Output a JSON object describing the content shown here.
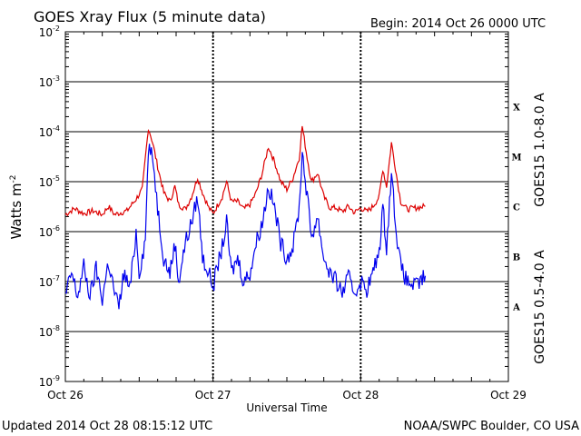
{
  "chart_data": {
    "type": "line",
    "title": "GOES Xray Flux (5 minute data)",
    "begin_label": "Begin:  2014 Oct 26 0000 UTC",
    "xlabel": "Universal Time",
    "ylabel_base": "Watts m",
    "ylabel_exp": "-2",
    "footer_left": "Updated 2014 Oct 28 08:15:12 UTC",
    "footer_right": "NOAA/SWPC Boulder, CO USA",
    "x_ticks": [
      "Oct 26",
      "Oct 27",
      "Oct 28",
      "Oct 29"
    ],
    "x_range_hours": [
      0,
      72
    ],
    "y_scale": "log",
    "ylim": [
      1e-09,
      0.01
    ],
    "y_ticks": [
      {
        "base": "10",
        "exp": "-2"
      },
      {
        "base": "10",
        "exp": "-3"
      },
      {
        "base": "10",
        "exp": "-4"
      },
      {
        "base": "10",
        "exp": "-5"
      },
      {
        "base": "10",
        "exp": "-6"
      },
      {
        "base": "10",
        "exp": "-7"
      },
      {
        "base": "10",
        "exp": "-8"
      },
      {
        "base": "10",
        "exp": "-9"
      }
    ],
    "flare_classes": [
      "X",
      "M",
      "C",
      "B",
      "A"
    ],
    "series": [
      {
        "name": "GOES15 1.0-8.0 A",
        "color": "#dd0000",
        "points": [
          [
            0,
            2.2e-06
          ],
          [
            1.5,
            2.9e-06
          ],
          [
            3,
            2.3e-06
          ],
          [
            4.5,
            2.6e-06
          ],
          [
            6,
            2.2e-06
          ],
          [
            7,
            3.2e-06
          ],
          [
            8,
            2.2e-06
          ],
          [
            9,
            2.4e-06
          ],
          [
            10,
            2.6e-06
          ],
          [
            11.5,
            4.5e-06
          ],
          [
            12.5,
            7e-06
          ],
          [
            13.5,
            0.00012
          ],
          [
            14.2,
            6e-05
          ],
          [
            15,
            2e-05
          ],
          [
            16,
            6e-06
          ],
          [
            17,
            4e-06
          ],
          [
            17.8,
            8e-06
          ],
          [
            18.4,
            3.5e-06
          ],
          [
            19.5,
            2.8e-06
          ],
          [
            20.5,
            5e-06
          ],
          [
            21.5,
            1.2e-05
          ],
          [
            22.3,
            6e-06
          ],
          [
            23.3,
            3e-06
          ],
          [
            24,
            2.3e-06
          ],
          [
            25.5,
            5e-06
          ],
          [
            26.2,
            1e-05
          ],
          [
            27,
            4e-06
          ],
          [
            28,
            4e-06
          ],
          [
            29,
            2.8e-06
          ],
          [
            30,
            3.5e-06
          ],
          [
            31,
            6e-06
          ],
          [
            32,
            1.5e-05
          ],
          [
            33,
            5e-05
          ],
          [
            34,
            2.5e-05
          ],
          [
            35,
            1e-05
          ],
          [
            36,
            7e-06
          ],
          [
            37,
            1.2e-05
          ],
          [
            38,
            3e-05
          ],
          [
            38.5,
            0.00013
          ],
          [
            39.3,
            3e-05
          ],
          [
            40,
            1e-05
          ],
          [
            41,
            1.5e-05
          ],
          [
            42,
            5e-06
          ],
          [
            43,
            3e-06
          ],
          [
            44,
            3e-06
          ],
          [
            45,
            2.5e-06
          ],
          [
            46,
            3.2e-06
          ],
          [
            47,
            2.4e-06
          ],
          [
            48,
            3e-06
          ],
          [
            49,
            2.5e-06
          ],
          [
            50,
            3.2e-06
          ],
          [
            51,
            5e-06
          ],
          [
            51.6,
            1.8e-05
          ],
          [
            52.2,
            8e-06
          ],
          [
            53,
            6e-05
          ],
          [
            53.8,
            1.4e-05
          ],
          [
            54.5,
            4e-06
          ],
          [
            55.5,
            2.8e-06
          ],
          [
            57,
            3e-06
          ],
          [
            58.5,
            3.2e-06
          ]
        ]
      },
      {
        "name": "GOES15 0.5-4.0 A",
        "color": "#0000ee",
        "points": [
          [
            0,
            5e-08
          ],
          [
            1,
            1.5e-07
          ],
          [
            2,
            5e-08
          ],
          [
            3,
            2e-07
          ],
          [
            4,
            5e-08
          ],
          [
            5,
            1.8e-07
          ],
          [
            6,
            4.5e-08
          ],
          [
            7,
            2.5e-07
          ],
          [
            8,
            6e-08
          ],
          [
            8.7,
            3e-08
          ],
          [
            9.5,
            1.5e-07
          ],
          [
            10.5,
            7e-08
          ],
          [
            11.5,
            1e-06
          ],
          [
            12,
            1.5e-07
          ],
          [
            13,
            7e-07
          ],
          [
            13.5,
            5e-05
          ],
          [
            14.3,
            2.5e-05
          ],
          [
            15,
            3e-06
          ],
          [
            16,
            3e-07
          ],
          [
            17,
            1.5e-07
          ],
          [
            17.8,
            6e-07
          ],
          [
            18.4,
            1e-07
          ],
          [
            19.5,
            6e-07
          ],
          [
            20.5,
            1.5e-06
          ],
          [
            21.5,
            5e-06
          ],
          [
            22.3,
            3e-07
          ],
          [
            23.3,
            1.5e-07
          ],
          [
            24,
            8e-08
          ],
          [
            25.5,
            5e-07
          ],
          [
            26.2,
            1.5e-06
          ],
          [
            27,
            1.5e-07
          ],
          [
            28,
            3e-07
          ],
          [
            29,
            1e-07
          ],
          [
            30,
            1.5e-07
          ],
          [
            31,
            6e-07
          ],
          [
            32,
            1.5e-06
          ],
          [
            33,
            8e-06
          ],
          [
            34,
            3e-06
          ],
          [
            35,
            6e-07
          ],
          [
            36,
            3e-07
          ],
          [
            37,
            5e-07
          ],
          [
            38,
            3e-06
          ],
          [
            38.5,
            4e-05
          ],
          [
            39.3,
            5e-06
          ],
          [
            40,
            8e-07
          ],
          [
            41,
            2e-06
          ],
          [
            42,
            3e-07
          ],
          [
            43,
            1.5e-07
          ],
          [
            44,
            1e-07
          ],
          [
            45,
            6e-08
          ],
          [
            46,
            1.2e-07
          ],
          [
            47,
            6e-08
          ],
          [
            48,
            1e-07
          ],
          [
            49,
            7e-08
          ],
          [
            50,
            1.5e-07
          ],
          [
            51,
            4e-07
          ],
          [
            51.6,
            3e-06
          ],
          [
            52.2,
            5e-07
          ],
          [
            53,
            1.5e-05
          ],
          [
            53.8,
            1e-06
          ],
          [
            54.5,
            2e-07
          ],
          [
            55.5,
            1e-07
          ],
          [
            57,
            8e-08
          ],
          [
            58.5,
            1.3e-07
          ]
        ]
      }
    ]
  }
}
